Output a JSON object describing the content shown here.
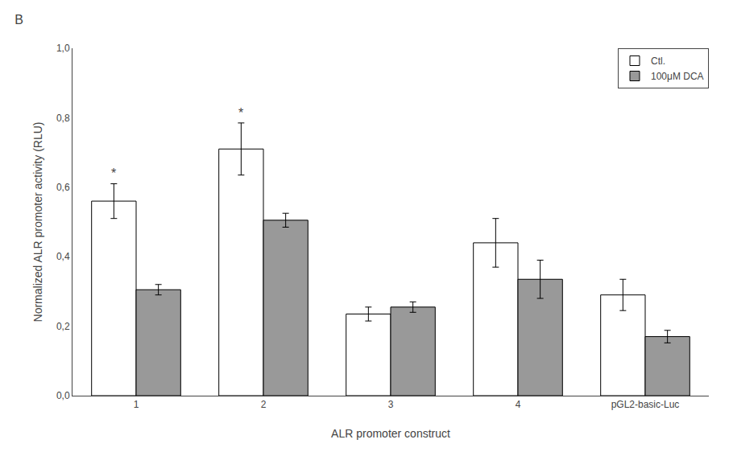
{
  "chart_data": {
    "type": "bar",
    "title": "B",
    "categories": [
      "1",
      "2",
      "3",
      "4",
      "pGL2-basic-Luc"
    ],
    "series": [
      {
        "name": "Ctl.",
        "color": "#ffffff",
        "values": [
          0.56,
          0.71,
          0.235,
          0.44,
          0.29
        ],
        "errors": [
          0.05,
          0.075,
          0.02,
          0.07,
          0.045
        ]
      },
      {
        "name": "100μM DCA",
        "color": "#999999",
        "values": [
          0.305,
          0.505,
          0.255,
          0.335,
          0.17
        ],
        "errors": [
          0.015,
          0.02,
          0.015,
          0.055,
          0.018
        ]
      }
    ],
    "xlabel": "ALR promoter construct",
    "ylabel": "Normalized ALR promoter activity (RLU)",
    "ylim": [
      0.0,
      1.0
    ],
    "yticks": [
      {
        "value": 0.0,
        "label": "0,0"
      },
      {
        "value": 0.2,
        "label": "0,2"
      },
      {
        "value": 0.4,
        "label": "0,4"
      },
      {
        "value": 0.6,
        "label": "0,6"
      },
      {
        "value": 0.8,
        "label": "0,8"
      },
      {
        "value": 1.0,
        "label": "1,0"
      }
    ],
    "grid": false,
    "legend": "upper right",
    "annotations": [
      {
        "text": "*",
        "category": "1",
        "series": "Ctl."
      },
      {
        "text": "*",
        "category": "2",
        "series": "Ctl."
      }
    ]
  }
}
